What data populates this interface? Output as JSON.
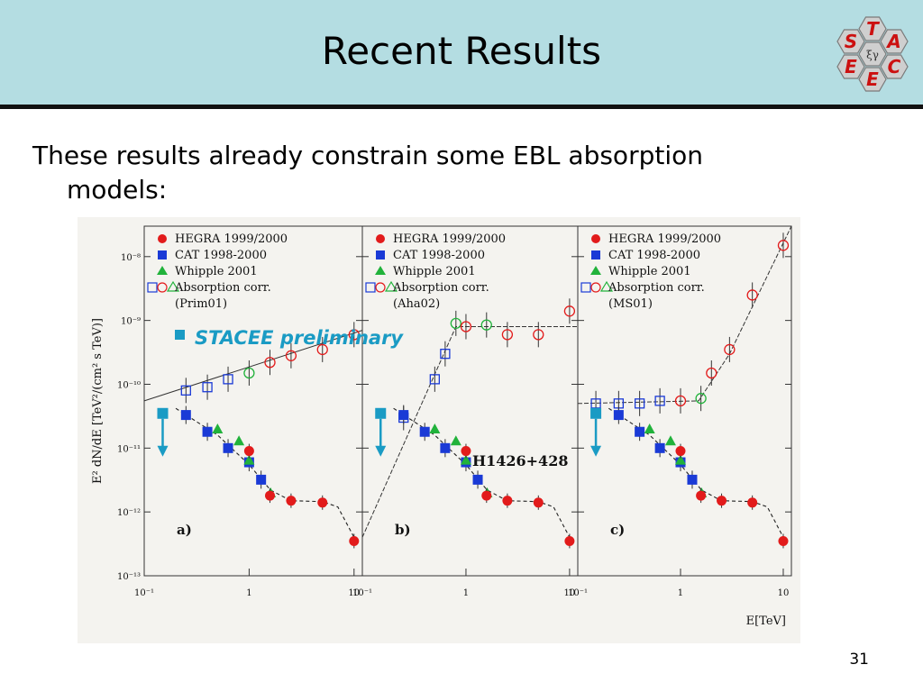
{
  "slide": {
    "title": "Recent Results",
    "body_line1": "These results already constrain some EBL absorption",
    "body_line2": "models:",
    "page_number": "31",
    "header_bg": "#b4dde2"
  },
  "logo": {
    "letters": [
      "T",
      "S",
      "A",
      "E",
      "C",
      "E"
    ],
    "center_glyph": "ξγ",
    "letter_color": "#cc1010",
    "hex_fill": "#cfcfcf"
  },
  "figure": {
    "ylabel": "E² dN/dE [TeV²/(cm² s TeV)]",
    "xlabel": "E[TeV]",
    "source_label": "H1426+428",
    "stacee_label": "STACEE preliminary",
    "y_ticks": [
      "10⁻⁸",
      "10⁻⁹",
      "10⁻¹⁰",
      "10⁻¹¹",
      "10⁻¹²",
      "10⁻¹³"
    ],
    "x_ticks": [
      "10⁻¹",
      "1",
      "10"
    ],
    "legend": [
      "HEGRA 1999/2000",
      "CAT 1998-2000",
      "Whipple 2001",
      "Absorption corr."
    ],
    "panel_models": [
      "(Prim01)",
      "(Aha02)",
      "(MS01)"
    ],
    "panel_labels": [
      "a)",
      "b)",
      "c)"
    ]
  },
  "chart_data": {
    "type": "scatter",
    "x_scale": "log",
    "y_scale": "log",
    "xlim": [
      0.1,
      12
    ],
    "ylim": [
      1e-13,
      3e-08
    ],
    "colors": {
      "HEGRA": "#e21b1b",
      "CAT": "#1a3ad6",
      "Whipple": "#21b23b",
      "STACEE": "#1a9bc4"
    },
    "measured": {
      "HEGRA": [
        [
          1.0,
          9e-12
        ],
        [
          1.58,
          1.8e-12
        ],
        [
          2.51,
          1.5e-12
        ],
        [
          5.0,
          1.4e-12
        ],
        [
          10.0,
          3.5e-13
        ]
      ],
      "CAT": [
        [
          0.25,
          3.3e-11
        ],
        [
          0.4,
          1.8e-11
        ],
        [
          0.63,
          1e-11
        ],
        [
          1.0,
          6e-12
        ],
        [
          1.3,
          3.2e-12
        ]
      ],
      "Whipple": [
        [
          0.5,
          2e-11
        ],
        [
          0.8,
          1.3e-11
        ],
        [
          1.0,
          6.5e-12
        ],
        [
          1.6,
          2e-12
        ]
      ],
      "STACEE": [
        [
          0.15,
          3.5e-11
        ]
      ],
      "fit_curve": [
        [
          0.2,
          4.2e-11
        ],
        [
          0.5,
          1.6e-11
        ],
        [
          1.0,
          5.5e-12
        ],
        [
          1.6,
          2.2e-12
        ],
        [
          2.5,
          1.5e-12
        ],
        [
          5.0,
          1.45e-12
        ],
        [
          7.0,
          1.2e-12
        ],
        [
          10.0,
          4e-13
        ]
      ]
    },
    "corrected": [
      {
        "model": "Prim01",
        "points": [
          [
            0.25,
            8e-11
          ],
          [
            0.4,
            9e-11
          ],
          [
            0.63,
            1.2e-10
          ],
          [
            1.0,
            1.5e-10
          ],
          [
            1.58,
            2.2e-10
          ],
          [
            2.51,
            2.8e-10
          ],
          [
            5.0,
            3.5e-10
          ],
          [
            10.0,
            6e-10
          ]
        ],
        "fit": [
          [
            0.1,
            5.5e-11
          ],
          [
            12.0,
            7e-10
          ]
        ]
      },
      {
        "model": "Aha02",
        "points": [
          [
            0.25,
            3e-11
          ],
          [
            0.5,
            1.2e-10
          ],
          [
            0.63,
            3e-10
          ],
          [
            0.8,
            9e-10
          ],
          [
            1.0,
            8e-10
          ],
          [
            1.58,
            8.5e-10
          ],
          [
            2.51,
            6e-10
          ],
          [
            5.0,
            6e-10
          ],
          [
            10.0,
            1.4e-09
          ]
        ],
        "fit": [
          [
            0.1,
            4e-13
          ],
          [
            0.8,
            8e-10
          ],
          [
            12.0,
            8e-10
          ]
        ]
      },
      {
        "model": "MS01",
        "points": [
          [
            0.15,
            5e-11
          ],
          [
            0.25,
            5e-11
          ],
          [
            0.4,
            5e-11
          ],
          [
            0.63,
            5.5e-11
          ],
          [
            1.0,
            5.5e-11
          ],
          [
            1.58,
            6e-11
          ],
          [
            2.0,
            1.5e-10
          ],
          [
            3.0,
            3.5e-10
          ],
          [
            5.0,
            2.5e-09
          ],
          [
            10.0,
            1.5e-08
          ]
        ],
        "fit": [
          [
            0.1,
            5e-11
          ],
          [
            1.5,
            5.5e-11
          ],
          [
            3.0,
            3e-10
          ],
          [
            6.0,
            3e-09
          ],
          [
            12.0,
            3e-08
          ]
        ]
      }
    ]
  }
}
